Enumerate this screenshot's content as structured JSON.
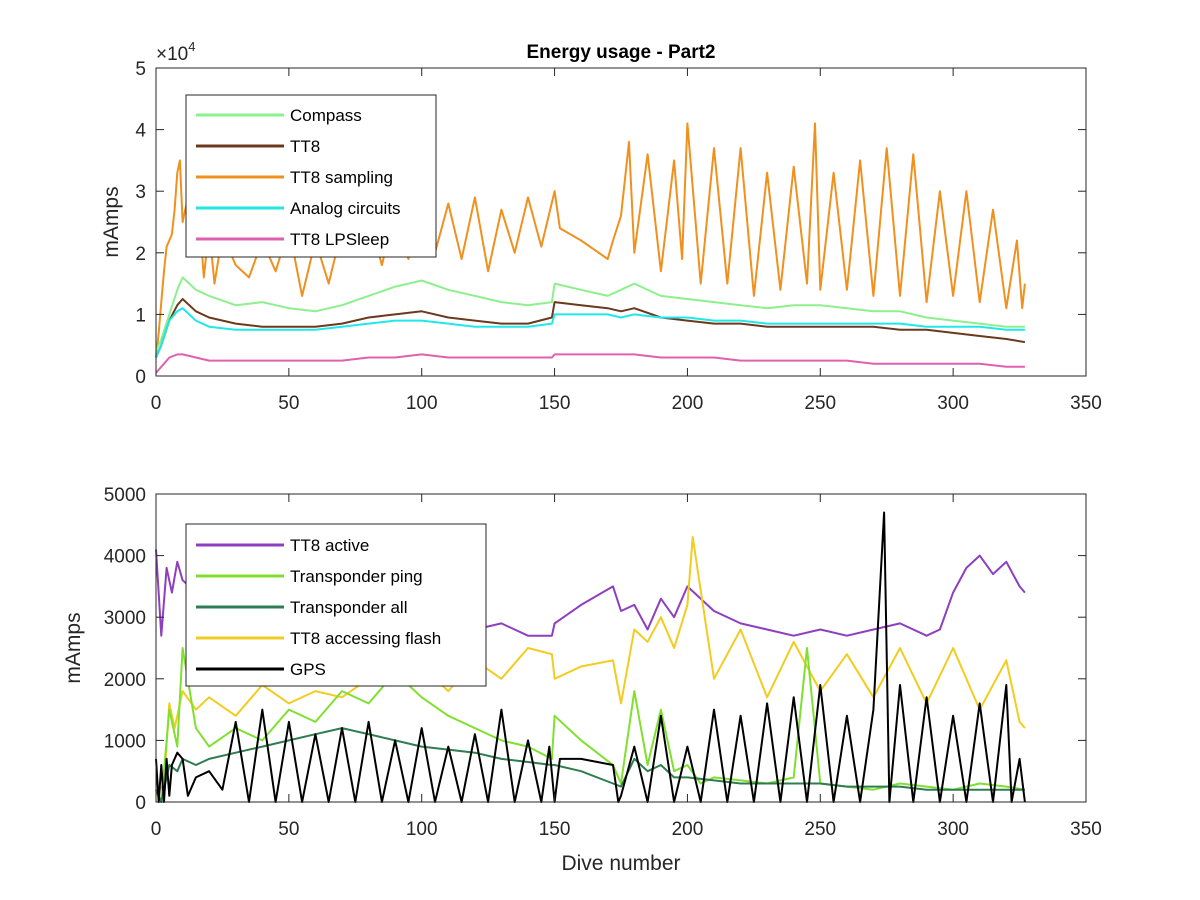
{
  "figure": {
    "title": "Energy usage - Part2",
    "xlabel": "Dive number"
  },
  "chart_data": [
    {
      "type": "line",
      "title": "Energy usage - Part2",
      "xlabel": "",
      "ylabel": "mAmps",
      "xlim": [
        0,
        350
      ],
      "ylim": [
        0,
        50000
      ],
      "xticks": [
        "0",
        "50",
        "100",
        "150",
        "200",
        "250",
        "300",
        "350"
      ],
      "yticks": [
        "0",
        "1",
        "2",
        "3",
        "4",
        "5"
      ],
      "y_exponent": {
        "base": "×10",
        "power": "4"
      },
      "grid": false,
      "legend_position": "top-left",
      "series": [
        {
          "name": "TT8 sampling",
          "color": "#F0901E",
          "x": [
            0,
            1,
            2,
            3,
            4,
            5,
            6,
            7,
            8,
            9,
            10,
            12,
            14,
            16,
            18,
            20,
            22,
            25,
            30,
            35,
            40,
            45,
            50,
            55,
            60,
            65,
            70,
            75,
            80,
            85,
            90,
            95,
            100,
            105,
            110,
            115,
            120,
            125,
            130,
            135,
            140,
            145,
            150,
            152,
            160,
            170,
            172,
            175,
            178,
            180,
            185,
            190,
            195,
            198,
            200,
            205,
            210,
            215,
            220,
            225,
            230,
            235,
            240,
            245,
            248,
            250,
            255,
            260,
            265,
            270,
            275,
            280,
            285,
            290,
            295,
            300,
            305,
            310,
            315,
            320,
            324,
            326,
            327
          ],
          "values": [
            3000,
            7000,
            12000,
            17000,
            21000,
            22000,
            23000,
            27000,
            33000,
            35000,
            25000,
            29000,
            22000,
            28000,
            16000,
            24000,
            15000,
            23000,
            18000,
            16000,
            22000,
            17000,
            24000,
            13000,
            22000,
            15000,
            24000,
            20000,
            26000,
            18000,
            27000,
            19000,
            31000,
            20000,
            28000,
            19000,
            29000,
            17000,
            27000,
            20000,
            29000,
            21000,
            30000,
            24000,
            22000,
            19000,
            22000,
            26000,
            38000,
            20000,
            36000,
            17000,
            35000,
            19000,
            41000,
            15000,
            37000,
            15000,
            37000,
            13000,
            33000,
            14000,
            34000,
            15000,
            41000,
            14000,
            33000,
            14000,
            35000,
            13000,
            37000,
            13000,
            36000,
            12000,
            30000,
            13000,
            30000,
            12000,
            27000,
            11000,
            22000,
            11000,
            15000
          ]
        },
        {
          "name": "Compass",
          "color": "#8EEF8E",
          "x": [
            0,
            2,
            5,
            8,
            10,
            15,
            20,
            30,
            40,
            50,
            60,
            70,
            80,
            90,
            100,
            110,
            120,
            130,
            140,
            149,
            150,
            160,
            170,
            175,
            180,
            190,
            200,
            210,
            220,
            230,
            240,
            250,
            260,
            270,
            280,
            290,
            300,
            310,
            320,
            327
          ],
          "values": [
            4000,
            6000,
            10000,
            14000,
            16000,
            14000,
            13000,
            11500,
            12000,
            11000,
            10500,
            11500,
            13000,
            14500,
            15500,
            14000,
            13000,
            12000,
            11500,
            12000,
            15000,
            14000,
            13000,
            14000,
            15000,
            13000,
            12500,
            12000,
            11500,
            11000,
            11500,
            11500,
            11000,
            10500,
            10500,
            9500,
            9000,
            8500,
            8000,
            8000
          ]
        },
        {
          "name": "TT8",
          "color": "#6B3A1E",
          "x": [
            0,
            2,
            5,
            8,
            10,
            15,
            20,
            30,
            40,
            50,
            60,
            70,
            80,
            90,
            100,
            110,
            120,
            130,
            140,
            149,
            150,
            160,
            170,
            175,
            180,
            190,
            200,
            210,
            220,
            230,
            240,
            250,
            260,
            270,
            280,
            290,
            300,
            310,
            320,
            327
          ],
          "values": [
            3000,
            5000,
            9000,
            11500,
            12500,
            10500,
            9500,
            8500,
            8000,
            8000,
            8000,
            8500,
            9500,
            10000,
            10500,
            9500,
            9000,
            8500,
            8500,
            9500,
            12000,
            11500,
            11000,
            10500,
            11000,
            9500,
            9000,
            8500,
            8500,
            8000,
            8000,
            8000,
            8000,
            8000,
            7500,
            7500,
            7000,
            6500,
            6000,
            5500
          ]
        },
        {
          "name": "Analog circuits",
          "color": "#21E8E8",
          "x": [
            0,
            2,
            5,
            8,
            10,
            15,
            20,
            30,
            40,
            50,
            60,
            70,
            80,
            90,
            100,
            110,
            120,
            130,
            140,
            149,
            150,
            160,
            170,
            175,
            180,
            190,
            200,
            210,
            220,
            230,
            240,
            250,
            260,
            270,
            280,
            290,
            300,
            310,
            320,
            327
          ],
          "values": [
            3000,
            5000,
            9000,
            10500,
            11000,
            9000,
            8000,
            7500,
            7500,
            7500,
            7500,
            8000,
            8500,
            9000,
            9000,
            8500,
            8000,
            8000,
            8000,
            8500,
            10000,
            10000,
            10000,
            9500,
            10000,
            9500,
            9500,
            9000,
            9000,
            8500,
            8500,
            8500,
            8500,
            8500,
            8500,
            8000,
            8000,
            8000,
            7500,
            7500
          ]
        },
        {
          "name": "TT8 LPSleep",
          "color": "#E060B0",
          "x": [
            0,
            2,
            5,
            8,
            10,
            15,
            20,
            30,
            40,
            50,
            60,
            70,
            80,
            90,
            100,
            110,
            120,
            130,
            140,
            149,
            150,
            160,
            170,
            175,
            180,
            190,
            200,
            210,
            220,
            230,
            240,
            250,
            260,
            270,
            280,
            290,
            300,
            310,
            320,
            327
          ],
          "values": [
            500,
            1500,
            3000,
            3500,
            3500,
            3000,
            2500,
            2500,
            2500,
            2500,
            2500,
            2500,
            3000,
            3000,
            3500,
            3000,
            3000,
            3000,
            3000,
            3000,
            3500,
            3500,
            3500,
            3500,
            3500,
            3000,
            3000,
            3000,
            2500,
            2500,
            2500,
            2500,
            2500,
            2000,
            2000,
            2000,
            2000,
            2000,
            1500,
            1500
          ]
        }
      ]
    },
    {
      "type": "line",
      "title": "",
      "xlabel": "Dive number",
      "ylabel": "mAmps",
      "xlim": [
        0,
        350
      ],
      "ylim": [
        0,
        5000
      ],
      "xticks": [
        "0",
        "50",
        "100",
        "150",
        "200",
        "250",
        "300",
        "350"
      ],
      "yticks": [
        "0",
        "1000",
        "2000",
        "3000",
        "4000",
        "5000"
      ],
      "grid": false,
      "legend_position": "top-left",
      "series": [
        {
          "name": "TT8 active",
          "color": "#8E3FBF",
          "x": [
            0,
            2,
            4,
            6,
            8,
            10,
            15,
            20,
            30,
            40,
            50,
            60,
            70,
            80,
            90,
            100,
            110,
            120,
            130,
            140,
            149,
            150,
            160,
            172,
            175,
            180,
            185,
            190,
            195,
            200,
            210,
            220,
            230,
            240,
            250,
            260,
            270,
            280,
            290,
            295,
            300,
            305,
            310,
            315,
            320,
            325,
            327
          ],
          "values": [
            4100,
            2700,
            3800,
            3400,
            3900,
            3600,
            3400,
            3300,
            3200,
            3000,
            3100,
            2900,
            3100,
            3200,
            3000,
            3100,
            2900,
            2800,
            2900,
            2700,
            2700,
            2900,
            3200,
            3500,
            3100,
            3200,
            2800,
            3300,
            3000,
            3500,
            3100,
            2900,
            2800,
            2700,
            2800,
            2700,
            2800,
            2900,
            2700,
            2800,
            3400,
            3800,
            4000,
            3700,
            3900,
            3500,
            3400
          ]
        },
        {
          "name": "TT8 accessing flash",
          "color": "#F2CC20",
          "x": [
            0,
            3,
            5,
            7,
            10,
            15,
            20,
            30,
            40,
            50,
            60,
            70,
            80,
            90,
            100,
            110,
            120,
            130,
            140,
            149,
            150,
            160,
            172,
            175,
            180,
            185,
            190,
            195,
            200,
            202,
            210,
            220,
            230,
            240,
            250,
            260,
            270,
            280,
            290,
            300,
            310,
            320,
            325,
            327
          ],
          "values": [
            100,
            300,
            1600,
            1200,
            1800,
            1500,
            1700,
            1400,
            1900,
            1600,
            1800,
            1700,
            2000,
            1900,
            2200,
            1800,
            2300,
            2000,
            2500,
            2400,
            2000,
            2200,
            2300,
            1600,
            2800,
            2600,
            3000,
            2500,
            3200,
            4300,
            2000,
            2800,
            1700,
            2600,
            1800,
            2400,
            1700,
            2500,
            1600,
            2500,
            1500,
            2300,
            1300,
            1200
          ]
        },
        {
          "name": "Transponder ping",
          "color": "#80E030",
          "x": [
            0,
            2,
            5,
            8,
            10,
            15,
            20,
            30,
            40,
            50,
            60,
            70,
            80,
            90,
            100,
            110,
            120,
            130,
            140,
            149,
            150,
            160,
            172,
            175,
            180,
            185,
            190,
            195,
            200,
            205,
            210,
            220,
            230,
            240,
            245,
            250,
            260,
            270,
            280,
            290,
            300,
            310,
            320,
            327
          ],
          "values": [
            200,
            0,
            1500,
            900,
            2500,
            1200,
            900,
            1200,
            1000,
            1500,
            1300,
            1800,
            1600,
            2100,
            1700,
            1400,
            1200,
            1000,
            900,
            700,
            1400,
            1000,
            600,
            300,
            1800,
            600,
            1500,
            500,
            600,
            300,
            400,
            350,
            300,
            400,
            2500,
            300,
            250,
            200,
            300,
            250,
            200,
            300,
            250,
            200
          ]
        },
        {
          "name": "Transponder all",
          "color": "#2E7D50",
          "x": [
            0,
            2,
            5,
            8,
            10,
            15,
            20,
            30,
            40,
            50,
            60,
            70,
            80,
            90,
            100,
            110,
            120,
            130,
            140,
            149,
            150,
            160,
            172,
            175,
            180,
            185,
            190,
            195,
            200,
            210,
            220,
            230,
            240,
            250,
            260,
            270,
            280,
            290,
            300,
            310,
            320,
            327
          ],
          "values": [
            200,
            0,
            600,
            500,
            700,
            600,
            700,
            800,
            900,
            1000,
            1100,
            1200,
            1100,
            1000,
            900,
            850,
            800,
            700,
            650,
            600,
            600,
            500,
            300,
            250,
            700,
            500,
            600,
            400,
            400,
            350,
            300,
            300,
            300,
            300,
            250,
            250,
            250,
            200,
            200,
            200,
            200,
            200
          ]
        },
        {
          "name": "GPS",
          "color": "#000000",
          "x": [
            0,
            1,
            2,
            3,
            4,
            5,
            6,
            8,
            10,
            12,
            15,
            20,
            25,
            30,
            35,
            40,
            45,
            50,
            55,
            60,
            65,
            70,
            75,
            80,
            85,
            90,
            95,
            100,
            105,
            110,
            115,
            120,
            125,
            130,
            135,
            140,
            145,
            148,
            150,
            152,
            160,
            172,
            174,
            175,
            180,
            185,
            190,
            195,
            200,
            205,
            210,
            215,
            220,
            225,
            230,
            235,
            240,
            245,
            250,
            255,
            260,
            265,
            270,
            274,
            276,
            280,
            285,
            290,
            295,
            300,
            305,
            310,
            315,
            320,
            322,
            325,
            327
          ],
          "values": [
            700,
            0,
            600,
            0,
            700,
            100,
            600,
            800,
            700,
            100,
            400,
            500,
            200,
            1300,
            0,
            1500,
            0,
            1300,
            0,
            1100,
            0,
            1200,
            0,
            1300,
            0,
            1000,
            0,
            1200,
            0,
            900,
            0,
            1100,
            0,
            1500,
            0,
            1000,
            0,
            900,
            0,
            700,
            700,
            600,
            0,
            100,
            900,
            0,
            1400,
            0,
            900,
            0,
            1500,
            0,
            1400,
            0,
            1600,
            0,
            1700,
            0,
            1900,
            0,
            1400,
            0,
            1500,
            4700,
            0,
            1900,
            0,
            1700,
            0,
            1400,
            0,
            1600,
            0,
            1900,
            0,
            700,
            0
          ]
        }
      ]
    }
  ]
}
